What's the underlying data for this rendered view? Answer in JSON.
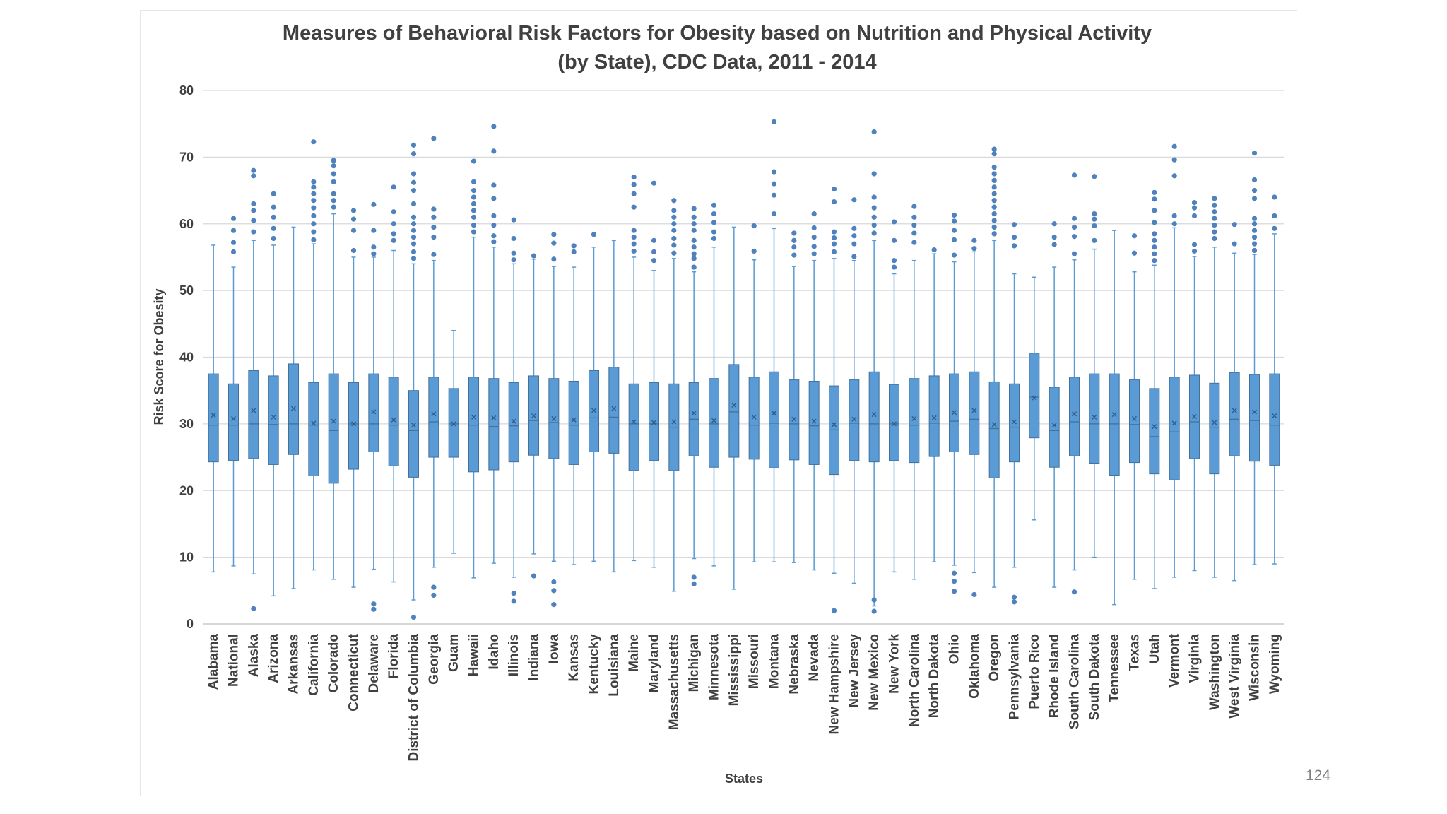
{
  "page_number": "124",
  "chart_data": {
    "type": "boxplot",
    "title": "Measures of Behavioral Risk Factors for Obesity based on Nutrition and Physical Activity",
    "subtitle": "(by State), CDC Data, 2011 - 2014",
    "xlabel": "States",
    "ylabel": "Risk Score for Obesity",
    "ylim": [
      0,
      80
    ],
    "yticks": [
      0,
      10,
      20,
      30,
      40,
      50,
      60,
      70,
      80
    ],
    "grid": true,
    "colors": {
      "box_fill": "#5b9bd5",
      "box_stroke": "#41719c",
      "whisker": "#5b9bd5",
      "outlier": "#4f81bd",
      "grid": "#d9d9d9",
      "text": "#404040"
    },
    "categories": [
      "Alabama",
      "National",
      "Alaska",
      "Arizona",
      "Arkansas",
      "California",
      "Colorado",
      "Connecticut",
      "Delaware",
      "Florida",
      "District of Columbia",
      "Georgia",
      "Guam",
      "Hawaii",
      "Idaho",
      "Illinois",
      "Indiana",
      "Iowa",
      "Kansas",
      "Kentucky",
      "Louisiana",
      "Maine",
      "Maryland",
      "Massachusetts",
      "Michigan",
      "Minnesota",
      "Mississippi",
      "Missouri",
      "Montana",
      "Nebraska",
      "Nevada",
      "New Hampshire",
      "New Jersey",
      "New Mexico",
      "New York",
      "North Carolina",
      "North Dakota",
      "Ohio",
      "Oklahoma",
      "Oregon",
      "Pennsylvania",
      "Puerto Rico",
      "Rhode Island",
      "South Carolina",
      "South Dakota",
      "Tennessee",
      "Texas",
      "Utah",
      "Vermont",
      "Virginia",
      "Washington",
      "West Virginia",
      "Wisconsin",
      "Wyoming"
    ],
    "boxes": [
      {
        "min": 7.8,
        "q1": 24.3,
        "median": 29.8,
        "mean": 31.3,
        "q3": 37.5,
        "max": 56.8,
        "outliers": []
      },
      {
        "min": 8.7,
        "q1": 24.5,
        "median": 29.8,
        "mean": 30.8,
        "q3": 36.0,
        "max": 53.5,
        "outliers": [
          55.8,
          57.2,
          59.0,
          60.8
        ]
      },
      {
        "min": 7.5,
        "q1": 24.8,
        "median": 30.0,
        "mean": 32.0,
        "q3": 38.0,
        "max": 57.5,
        "outliers": [
          2.3,
          58.8,
          60.5,
          62.0,
          63.0,
          67.2,
          68.0
        ]
      },
      {
        "min": 4.2,
        "q1": 23.9,
        "median": 29.9,
        "mean": 31.0,
        "q3": 37.2,
        "max": 56.8,
        "outliers": [
          57.8,
          59.3,
          61.0,
          62.5,
          64.5
        ]
      },
      {
        "min": 5.3,
        "q1": 25.4,
        "median": 30.0,
        "mean": 32.3,
        "q3": 39.0,
        "max": 59.5,
        "outliers": []
      },
      {
        "min": 8.1,
        "q1": 22.2,
        "median": 29.8,
        "mean": 30.1,
        "q3": 36.2,
        "max": 57.0,
        "outliers": [
          57.6,
          58.8,
          60.0,
          61.2,
          62.4,
          63.5,
          64.5,
          65.5,
          66.3,
          72.3
        ]
      },
      {
        "min": 6.7,
        "q1": 21.1,
        "median": 29.0,
        "mean": 30.4,
        "q3": 37.5,
        "max": 61.5,
        "outliers": [
          62.5,
          63.5,
          64.5,
          66.3,
          67.5,
          68.7,
          69.5
        ]
      },
      {
        "min": 5.5,
        "q1": 23.2,
        "median": 30.0,
        "mean": 30.0,
        "q3": 36.2,
        "max": 55.0,
        "outliers": [
          56.0,
          59.0,
          60.7,
          62.0
        ]
      },
      {
        "min": 8.2,
        "q1": 25.8,
        "median": 30.0,
        "mean": 31.8,
        "q3": 37.5,
        "max": 55.0,
        "outliers": [
          2.2,
          3.0,
          55.5,
          56.5,
          59.0,
          62.9
        ]
      },
      {
        "min": 6.3,
        "q1": 23.7,
        "median": 29.8,
        "mean": 30.6,
        "q3": 37.0,
        "max": 56.0,
        "outliers": [
          57.5,
          58.5,
          60.0,
          61.8,
          65.5
        ]
      },
      {
        "min": 3.6,
        "q1": 22.0,
        "median": 29.0,
        "mean": 29.8,
        "q3": 35.0,
        "max": 54.0,
        "outliers": [
          1.0,
          54.8,
          55.8,
          57.0,
          58.0,
          59.0,
          60.0,
          61.0,
          63.0,
          65.0,
          66.2,
          67.5,
          70.5,
          71.8
        ]
      },
      {
        "min": 8.5,
        "q1": 25.0,
        "median": 30.3,
        "mean": 31.5,
        "q3": 37.0,
        "max": 54.5,
        "outliers": [
          4.3,
          5.5,
          55.4,
          58.0,
          59.5,
          61.0,
          62.2,
          72.8
        ]
      },
      {
        "min": 10.6,
        "q1": 25.0,
        "median": 30.0,
        "mean": 30.0,
        "q3": 35.3,
        "max": 44.0,
        "outliers": []
      },
      {
        "min": 6.9,
        "q1": 22.8,
        "median": 29.8,
        "mean": 31.0,
        "q3": 37.0,
        "max": 58.0,
        "outliers": [
          58.8,
          59.8,
          61.0,
          62.0,
          63.0,
          64.0,
          65.0,
          66.3,
          69.4
        ]
      },
      {
        "min": 9.1,
        "q1": 23.1,
        "median": 29.6,
        "mean": 30.9,
        "q3": 36.8,
        "max": 56.5,
        "outliers": [
          57.3,
          58.2,
          59.8,
          61.2,
          63.8,
          65.8,
          70.9,
          74.6
        ]
      },
      {
        "min": 7.0,
        "q1": 24.3,
        "median": 29.7,
        "mean": 30.4,
        "q3": 36.2,
        "max": 54.0,
        "outliers": [
          3.4,
          4.6,
          54.6,
          55.6,
          57.8,
          60.6
        ]
      },
      {
        "min": 10.5,
        "q1": 25.3,
        "median": 30.5,
        "mean": 31.2,
        "q3": 37.2,
        "max": 54.7,
        "outliers": [
          7.2,
          55.2
        ]
      },
      {
        "min": 9.4,
        "q1": 24.8,
        "median": 30.2,
        "mean": 30.8,
        "q3": 36.8,
        "max": 53.6,
        "outliers": [
          2.9,
          5.0,
          6.3,
          54.7,
          57.1,
          58.4
        ]
      },
      {
        "min": 8.9,
        "q1": 23.9,
        "median": 29.8,
        "mean": 30.6,
        "q3": 36.4,
        "max": 53.5,
        "outliers": [
          55.8,
          56.7
        ]
      },
      {
        "min": 9.4,
        "q1": 25.8,
        "median": 30.9,
        "mean": 32.0,
        "q3": 38.0,
        "max": 56.5,
        "outliers": [
          58.4
        ]
      },
      {
        "min": 7.8,
        "q1": 25.6,
        "median": 31.0,
        "mean": 32.3,
        "q3": 38.5,
        "max": 57.5,
        "outliers": []
      },
      {
        "min": 9.5,
        "q1": 23.0,
        "median": 30.0,
        "mean": 30.3,
        "q3": 36.0,
        "max": 55.0,
        "outliers": [
          55.9,
          57.0,
          58.0,
          59.0,
          62.5,
          64.5,
          65.9,
          67.0
        ]
      },
      {
        "min": 8.5,
        "q1": 24.5,
        "median": 30.0,
        "mean": 30.2,
        "q3": 36.2,
        "max": 53.0,
        "outliers": [
          54.5,
          55.8,
          57.5,
          66.1
        ]
      },
      {
        "min": 4.9,
        "q1": 23.0,
        "median": 29.5,
        "mean": 30.3,
        "q3": 36.0,
        "max": 54.8,
        "outliers": [
          55.6,
          56.8,
          57.8,
          59.0,
          60.0,
          61.0,
          62.0,
          63.5
        ]
      },
      {
        "min": 9.8,
        "q1": 25.2,
        "median": 30.7,
        "mean": 31.6,
        "q3": 36.2,
        "max": 52.8,
        "outliers": [
          6.0,
          7.0,
          53.5,
          54.8,
          55.5,
          56.5,
          57.5,
          59.0,
          60.0,
          61.0,
          62.3
        ]
      },
      {
        "min": 8.7,
        "q1": 23.5,
        "median": 30.0,
        "mean": 30.5,
        "q3": 36.8,
        "max": 56.5,
        "outliers": [
          57.8,
          58.8,
          60.2,
          61.5,
          62.8
        ]
      },
      {
        "min": 5.2,
        "q1": 25.0,
        "median": 31.8,
        "mean": 32.8,
        "q3": 38.9,
        "max": 59.5,
        "outliers": []
      },
      {
        "min": 9.3,
        "q1": 24.7,
        "median": 29.8,
        "mean": 31.0,
        "q3": 37.0,
        "max": 54.6,
        "outliers": [
          55.9,
          59.7
        ]
      },
      {
        "min": 9.3,
        "q1": 23.4,
        "median": 30.1,
        "mean": 31.6,
        "q3": 37.8,
        "max": 59.3,
        "outliers": [
          61.5,
          64.3,
          66.0,
          67.8,
          75.3
        ]
      },
      {
        "min": 9.2,
        "q1": 24.6,
        "median": 30.0,
        "mean": 30.7,
        "q3": 36.6,
        "max": 53.6,
        "outliers": [
          55.3,
          56.5,
          57.5,
          58.6
        ]
      },
      {
        "min": 8.1,
        "q1": 23.9,
        "median": 29.7,
        "mean": 30.4,
        "q3": 36.4,
        "max": 54.5,
        "outliers": [
          55.5,
          56.6,
          58.0,
          59.4,
          61.5
        ]
      },
      {
        "min": 7.6,
        "q1": 22.4,
        "median": 29.1,
        "mean": 29.9,
        "q3": 35.7,
        "max": 54.8,
        "outliers": [
          2.0,
          55.8,
          57.0,
          57.9,
          58.8,
          63.3,
          65.2
        ]
      },
      {
        "min": 6.1,
        "q1": 24.5,
        "median": 30.1,
        "mean": 30.7,
        "q3": 36.6,
        "max": 54.5,
        "outliers": [
          55.1,
          57.0,
          58.2,
          59.3,
          63.6
        ]
      },
      {
        "min": 2.7,
        "q1": 24.3,
        "median": 30.0,
        "mean": 31.4,
        "q3": 37.8,
        "max": 57.5,
        "outliers": [
          1.9,
          3.6,
          58.6,
          59.8,
          61.0,
          62.4,
          64.0,
          67.5,
          73.8
        ]
      },
      {
        "min": 7.8,
        "q1": 24.5,
        "median": 30.0,
        "mean": 30.0,
        "q3": 35.9,
        "max": 52.5,
        "outliers": [
          53.5,
          54.5,
          57.5,
          60.3
        ]
      },
      {
        "min": 6.7,
        "q1": 24.2,
        "median": 29.8,
        "mean": 30.8,
        "q3": 36.8,
        "max": 54.5,
        "outliers": [
          57.2,
          58.6,
          59.8,
          61.0,
          62.6
        ]
      },
      {
        "min": 9.3,
        "q1": 25.1,
        "median": 30.1,
        "mean": 30.9,
        "q3": 37.2,
        "max": 55.5,
        "outliers": [
          56.1
        ]
      },
      {
        "min": 8.8,
        "q1": 25.8,
        "median": 30.4,
        "mean": 31.7,
        "q3": 37.5,
        "max": 54.3,
        "outliers": [
          4.9,
          6.4,
          7.6,
          55.3,
          57.6,
          59.0,
          60.4,
          61.3
        ]
      },
      {
        "min": 7.7,
        "q1": 25.4,
        "median": 30.7,
        "mean": 32.0,
        "q3": 37.8,
        "max": 55.8,
        "outliers": [
          4.4,
          56.3,
          57.5
        ]
      },
      {
        "min": 5.5,
        "q1": 21.9,
        "median": 29.3,
        "mean": 29.9,
        "q3": 36.3,
        "max": 57.5,
        "outliers": [
          58.5,
          59.5,
          60.5,
          61.5,
          62.5,
          63.5,
          64.5,
          65.5,
          66.5,
          67.5,
          68.5,
          70.5,
          71.2
        ]
      },
      {
        "min": 8.5,
        "q1": 24.3,
        "median": 29.5,
        "mean": 30.3,
        "q3": 36.0,
        "max": 52.5,
        "outliers": [
          3.3,
          4.0,
          56.7,
          58.0,
          59.9
        ]
      },
      {
        "min": 15.6,
        "q1": 27.9,
        "median": 34.0,
        "mean": 33.9,
        "q3": 40.6,
        "max": 52.0,
        "outliers": []
      },
      {
        "min": 5.5,
        "q1": 23.5,
        "median": 29.0,
        "mean": 29.8,
        "q3": 35.5,
        "max": 53.5,
        "outliers": [
          56.9,
          58.0,
          60.0
        ]
      },
      {
        "min": 8.1,
        "q1": 25.2,
        "median": 30.3,
        "mean": 31.5,
        "q3": 37.0,
        "max": 54.6,
        "outliers": [
          4.8,
          55.5,
          58.1,
          59.5,
          60.8,
          67.3
        ]
      },
      {
        "min": 10.0,
        "q1": 24.1,
        "median": 30.0,
        "mean": 31.0,
        "q3": 37.5,
        "max": 56.2,
        "outliers": [
          57.5,
          59.7,
          60.7,
          61.5,
          67.1
        ]
      },
      {
        "min": 2.9,
        "q1": 22.3,
        "median": 30.0,
        "mean": 31.4,
        "q3": 37.5,
        "max": 59.0,
        "outliers": []
      },
      {
        "min": 6.7,
        "q1": 24.2,
        "median": 29.9,
        "mean": 30.8,
        "q3": 36.6,
        "max": 52.8,
        "outliers": [
          55.6,
          58.2
        ]
      },
      {
        "min": 5.3,
        "q1": 22.5,
        "median": 28.1,
        "mean": 29.6,
        "q3": 35.3,
        "max": 53.8,
        "outliers": [
          54.5,
          55.5,
          56.5,
          57.5,
          58.5,
          60.2,
          62.0,
          63.7,
          64.7
        ]
      },
      {
        "min": 7.0,
        "q1": 21.6,
        "median": 28.8,
        "mean": 30.1,
        "q3": 37.0,
        "max": 59.4,
        "outliers": [
          60.0,
          61.2,
          67.2,
          69.6,
          71.6
        ]
      },
      {
        "min": 8.0,
        "q1": 24.8,
        "median": 30.3,
        "mean": 31.1,
        "q3": 37.3,
        "max": 55.1,
        "outliers": [
          55.9,
          56.9,
          61.2,
          62.4,
          63.2
        ]
      },
      {
        "min": 7.0,
        "q1": 22.5,
        "median": 29.5,
        "mean": 30.2,
        "q3": 36.1,
        "max": 56.5,
        "outliers": [
          57.8,
          58.8,
          59.8,
          60.8,
          61.8,
          62.8,
          63.8
        ]
      },
      {
        "min": 6.5,
        "q1": 25.2,
        "median": 30.7,
        "mean": 32.0,
        "q3": 37.7,
        "max": 55.6,
        "outliers": [
          57.0,
          59.9
        ]
      },
      {
        "min": 8.9,
        "q1": 24.4,
        "median": 30.5,
        "mean": 31.8,
        "q3": 37.4,
        "max": 55.4,
        "outliers": [
          56.0,
          57.0,
          58.0,
          59.0,
          60.0,
          60.8,
          63.8,
          65.0,
          66.6,
          70.6
        ]
      },
      {
        "min": 9.0,
        "q1": 23.8,
        "median": 29.8,
        "mean": 31.2,
        "q3": 37.5,
        "max": 58.5,
        "outliers": [
          59.3,
          61.2,
          64.0
        ]
      }
    ]
  }
}
